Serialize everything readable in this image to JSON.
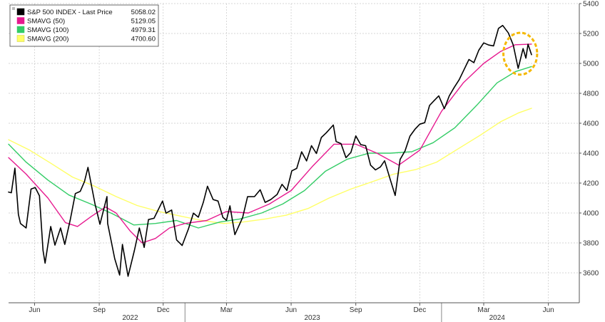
{
  "chart_data": {
    "type": "line",
    "title": "",
    "xlabel": "",
    "ylabel": "",
    "ylim": [
      3400,
      5400
    ],
    "y_ticks": [
      3600,
      3800,
      4000,
      4200,
      4400,
      4600,
      4800,
      5000,
      5200,
      5400
    ],
    "x_range": [
      "2022-04-25",
      "2024-07-15"
    ],
    "x_ticks": [
      {
        "date": "2022-06-01",
        "label": "Jun"
      },
      {
        "date": "2022-09-01",
        "label": "Sep"
      },
      {
        "date": "2022-12-01",
        "label": "Dec"
      },
      {
        "date": "2023-03-01",
        "label": "Mar"
      },
      {
        "date": "2023-06-01",
        "label": "Jun"
      },
      {
        "date": "2023-09-01",
        "label": "Sep"
      },
      {
        "date": "2023-12-01",
        "label": "Dec"
      },
      {
        "date": "2024-03-01",
        "label": "Mar"
      },
      {
        "date": "2024-06-01",
        "label": "Jun"
      }
    ],
    "years": [
      {
        "date": "2022-10-15",
        "label": "2022"
      },
      {
        "date": "2023-07-01",
        "label": "2023"
      },
      {
        "date": "2024-03-20",
        "label": "2024"
      }
    ],
    "year_separators": [
      "2023-01-01",
      "2024-01-01"
    ],
    "grid": true,
    "legend_position": "top-left",
    "series": [
      {
        "name": "S&P 500 INDEX - Last Price",
        "last_value": "5058.02",
        "color": "#000000",
        "points": [
          [
            "2022-04-25",
            4140
          ],
          [
            "2022-04-29",
            4135
          ],
          [
            "2022-05-04",
            4300
          ],
          [
            "2022-05-09",
            3990
          ],
          [
            "2022-05-12",
            3930
          ],
          [
            "2022-05-20",
            3900
          ],
          [
            "2022-05-27",
            4160
          ],
          [
            "2022-06-02",
            4170
          ],
          [
            "2022-06-08",
            4115
          ],
          [
            "2022-06-13",
            3750
          ],
          [
            "2022-06-16",
            3665
          ],
          [
            "2022-06-24",
            3910
          ],
          [
            "2022-06-30",
            3785
          ],
          [
            "2022-07-08",
            3900
          ],
          [
            "2022-07-14",
            3790
          ],
          [
            "2022-07-22",
            3960
          ],
          [
            "2022-07-29",
            4130
          ],
          [
            "2022-08-05",
            4145
          ],
          [
            "2022-08-11",
            4210
          ],
          [
            "2022-08-16",
            4305
          ],
          [
            "2022-08-19",
            4230
          ],
          [
            "2022-08-26",
            4060
          ],
          [
            "2022-09-02",
            3925
          ],
          [
            "2022-09-12",
            4110
          ],
          [
            "2022-09-13",
            3930
          ],
          [
            "2022-09-23",
            3695
          ],
          [
            "2022-09-30",
            3585
          ],
          [
            "2022-10-04",
            3790
          ],
          [
            "2022-10-12",
            3577
          ],
          [
            "2022-10-21",
            3750
          ],
          [
            "2022-10-28",
            3900
          ],
          [
            "2022-11-04",
            3770
          ],
          [
            "2022-11-10",
            3956
          ],
          [
            "2022-11-18",
            3965
          ],
          [
            "2022-11-30",
            4080
          ],
          [
            "2022-12-05",
            3999
          ],
          [
            "2022-12-13",
            4020
          ],
          [
            "2022-12-20",
            3820
          ],
          [
            "2022-12-28",
            3783
          ],
          [
            "2023-01-06",
            3895
          ],
          [
            "2023-01-13",
            3999
          ],
          [
            "2023-01-20",
            3972
          ],
          [
            "2023-01-27",
            4070
          ],
          [
            "2023-02-02",
            4179
          ],
          [
            "2023-02-10",
            4090
          ],
          [
            "2023-02-17",
            4080
          ],
          [
            "2023-02-24",
            3970
          ],
          [
            "2023-03-01",
            3951
          ],
          [
            "2023-03-06",
            4048
          ],
          [
            "2023-03-13",
            3855
          ],
          [
            "2023-03-24",
            3970
          ],
          [
            "2023-03-31",
            4109
          ],
          [
            "2023-04-10",
            4110
          ],
          [
            "2023-04-18",
            4155
          ],
          [
            "2023-04-25",
            4071
          ],
          [
            "2023-05-03",
            4090
          ],
          [
            "2023-05-12",
            4124
          ],
          [
            "2023-05-19",
            4192
          ],
          [
            "2023-05-26",
            4151
          ],
          [
            "2023-06-02",
            4282
          ],
          [
            "2023-06-09",
            4298
          ],
          [
            "2023-06-16",
            4409
          ],
          [
            "2023-06-23",
            4348
          ],
          [
            "2023-06-30",
            4450
          ],
          [
            "2023-07-07",
            4398
          ],
          [
            "2023-07-14",
            4505
          ],
          [
            "2023-07-21",
            4536
          ],
          [
            "2023-07-31",
            4588
          ],
          [
            "2023-08-04",
            4478
          ],
          [
            "2023-08-11",
            4464
          ],
          [
            "2023-08-18",
            4370
          ],
          [
            "2023-08-25",
            4405
          ],
          [
            "2023-09-01",
            4515
          ],
          [
            "2023-09-08",
            4457
          ],
          [
            "2023-09-15",
            4450
          ],
          [
            "2023-09-22",
            4320
          ],
          [
            "2023-09-29",
            4288
          ],
          [
            "2023-10-06",
            4308
          ],
          [
            "2023-10-12",
            4349
          ],
          [
            "2023-10-20",
            4224
          ],
          [
            "2023-10-27",
            4117
          ],
          [
            "2023-11-03",
            4358
          ],
          [
            "2023-11-10",
            4415
          ],
          [
            "2023-11-17",
            4514
          ],
          [
            "2023-11-24",
            4559
          ],
          [
            "2023-12-01",
            4594
          ],
          [
            "2023-12-08",
            4604
          ],
          [
            "2023-12-15",
            4719
          ],
          [
            "2023-12-22",
            4754
          ],
          [
            "2023-12-28",
            4783
          ],
          [
            "2024-01-05",
            4697
          ],
          [
            "2024-01-12",
            4783
          ],
          [
            "2024-01-19",
            4839
          ],
          [
            "2024-01-26",
            4890
          ],
          [
            "2024-02-02",
            4958
          ],
          [
            "2024-02-09",
            5026
          ],
          [
            "2024-02-16",
            5005
          ],
          [
            "2024-02-23",
            5088
          ],
          [
            "2024-03-01",
            5137
          ],
          [
            "2024-03-08",
            5123
          ],
          [
            "2024-03-15",
            5117
          ],
          [
            "2024-03-22",
            5234
          ],
          [
            "2024-03-28",
            5254
          ],
          [
            "2024-04-05",
            5204
          ],
          [
            "2024-04-12",
            5123
          ],
          [
            "2024-04-19",
            4967
          ],
          [
            "2024-04-26",
            5099
          ],
          [
            "2024-04-30",
            5035
          ],
          [
            "2024-05-03",
            5128
          ],
          [
            "2024-05-08",
            5058
          ]
        ]
      },
      {
        "name": "SMAVG (50)",
        "last_value": "5129.05",
        "color": "#e6198f",
        "points": [
          [
            "2022-04-25",
            4370
          ],
          [
            "2022-05-20",
            4260
          ],
          [
            "2022-06-20",
            4100
          ],
          [
            "2022-07-15",
            3935
          ],
          [
            "2022-08-01",
            3910
          ],
          [
            "2022-08-20",
            3975
          ],
          [
            "2022-09-10",
            4040
          ],
          [
            "2022-09-25",
            4000
          ],
          [
            "2022-10-15",
            3880
          ],
          [
            "2022-11-01",
            3800
          ],
          [
            "2022-11-20",
            3830
          ],
          [
            "2022-12-10",
            3900
          ],
          [
            "2023-01-01",
            3930
          ],
          [
            "2023-02-01",
            3950
          ],
          [
            "2023-03-01",
            4010
          ],
          [
            "2023-04-01",
            4000
          ],
          [
            "2023-05-01",
            4060
          ],
          [
            "2023-06-01",
            4150
          ],
          [
            "2023-07-01",
            4310
          ],
          [
            "2023-08-01",
            4460
          ],
          [
            "2023-09-01",
            4460
          ],
          [
            "2023-10-01",
            4400
          ],
          [
            "2023-11-01",
            4320
          ],
          [
            "2023-12-01",
            4420
          ],
          [
            "2024-01-01",
            4680
          ],
          [
            "2024-02-01",
            4870
          ],
          [
            "2024-03-01",
            5000
          ],
          [
            "2024-03-25",
            5080
          ],
          [
            "2024-04-15",
            5125
          ],
          [
            "2024-05-08",
            5129
          ]
        ]
      },
      {
        "name": "SMAVG (100)",
        "last_value": "4979.31",
        "color": "#33cc66",
        "points": [
          [
            "2022-04-25",
            4460
          ],
          [
            "2022-05-20",
            4340
          ],
          [
            "2022-06-20",
            4220
          ],
          [
            "2022-07-20",
            4120
          ],
          [
            "2022-08-20",
            4060
          ],
          [
            "2022-09-20",
            3995
          ],
          [
            "2022-10-20",
            3920
          ],
          [
            "2022-11-20",
            3930
          ],
          [
            "2022-12-20",
            3950
          ],
          [
            "2023-01-20",
            3900
          ],
          [
            "2023-02-20",
            3940
          ],
          [
            "2023-03-20",
            3960
          ],
          [
            "2023-04-20",
            4000
          ],
          [
            "2023-05-20",
            4060
          ],
          [
            "2023-06-20",
            4150
          ],
          [
            "2023-07-20",
            4280
          ],
          [
            "2023-08-20",
            4360
          ],
          [
            "2023-09-20",
            4400
          ],
          [
            "2023-10-20",
            4400
          ],
          [
            "2023-11-20",
            4410
          ],
          [
            "2023-12-20",
            4470
          ],
          [
            "2024-01-20",
            4570
          ],
          [
            "2024-02-20",
            4720
          ],
          [
            "2024-03-20",
            4870
          ],
          [
            "2024-04-15",
            4945
          ],
          [
            "2024-05-08",
            4979
          ]
        ]
      },
      {
        "name": "SMAVG (200)",
        "last_value": "4700.60",
        "color": "#ffff66",
        "points": [
          [
            "2022-04-25",
            4490
          ],
          [
            "2022-05-25",
            4420
          ],
          [
            "2022-06-25",
            4330
          ],
          [
            "2022-07-25",
            4240
          ],
          [
            "2022-08-25",
            4180
          ],
          [
            "2022-09-25",
            4110
          ],
          [
            "2022-10-25",
            4050
          ],
          [
            "2022-11-25",
            4010
          ],
          [
            "2022-12-25",
            3980
          ],
          [
            "2023-01-25",
            3950
          ],
          [
            "2023-02-25",
            3930
          ],
          [
            "2023-03-25",
            3940
          ],
          [
            "2023-04-25",
            3960
          ],
          [
            "2023-05-25",
            3985
          ],
          [
            "2023-06-25",
            4030
          ],
          [
            "2023-07-25",
            4100
          ],
          [
            "2023-08-25",
            4160
          ],
          [
            "2023-09-25",
            4210
          ],
          [
            "2023-10-25",
            4260
          ],
          [
            "2023-11-25",
            4290
          ],
          [
            "2023-12-25",
            4340
          ],
          [
            "2024-01-25",
            4430
          ],
          [
            "2024-02-25",
            4520
          ],
          [
            "2024-03-25",
            4610
          ],
          [
            "2024-04-20",
            4670
          ],
          [
            "2024-05-08",
            4700
          ]
        ]
      }
    ],
    "annotation": {
      "kind": "dashed-circle",
      "color": "#f5b800",
      "center_date": "2024-04-22",
      "center_value": 5065,
      "radius_days": 24,
      "radius_value": 140
    }
  }
}
